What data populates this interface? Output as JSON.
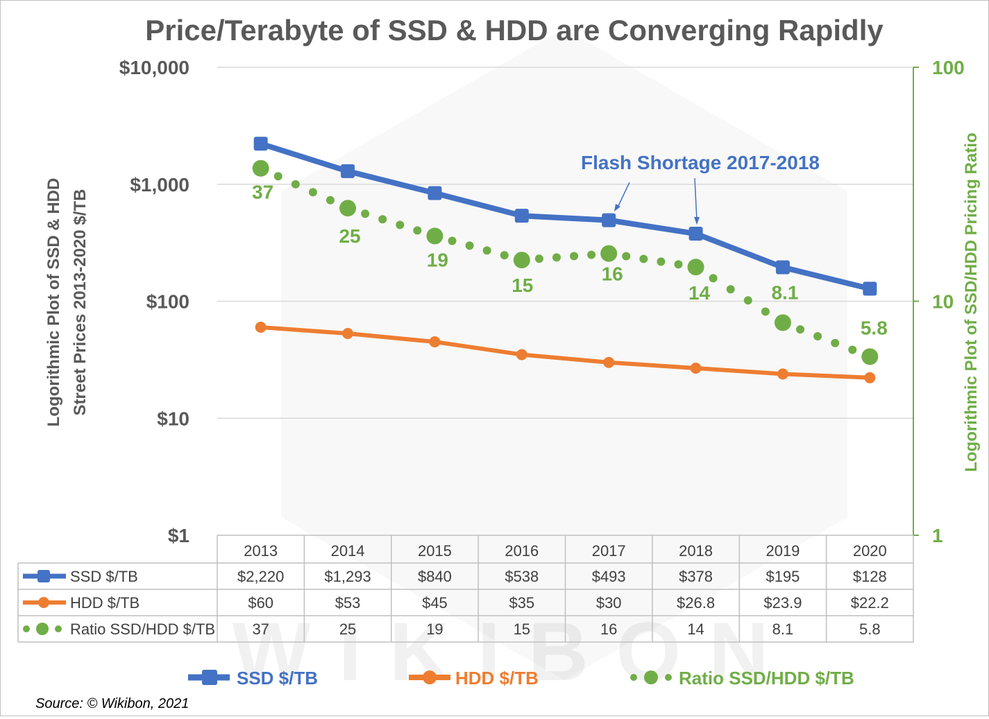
{
  "chart_data": {
    "type": "line",
    "title": "Price/Terabyte of SSD & HDD are Converging Rapidly",
    "categories": [
      "2013",
      "2014",
      "2015",
      "2016",
      "2017",
      "2018",
      "2019",
      "2020"
    ],
    "series": [
      {
        "name": "SSD $/TB",
        "axis": "left",
        "color": "#4472C4",
        "values": [
          2220,
          1293,
          840,
          538,
          493,
          378,
          195,
          128
        ],
        "table_values": [
          "$2,220",
          "$1,293",
          "$840",
          "$538",
          "$493",
          "$378",
          "$195",
          "$128"
        ]
      },
      {
        "name": "HDD $/TB",
        "axis": "left",
        "color": "#ED7D31",
        "values": [
          60,
          53,
          45,
          35,
          30,
          26.8,
          23.9,
          22.2
        ],
        "table_values": [
          "$60",
          "$53",
          "$45",
          "$35",
          "$30",
          "$26.8",
          "$23.9",
          "$22.2"
        ]
      },
      {
        "name": "Ratio SSD/HDD $/TB",
        "axis": "right",
        "color": "#70AD47",
        "values": [
          37,
          25,
          19,
          15,
          16,
          14,
          8.1,
          5.8
        ],
        "table_values": [
          "37",
          "25",
          "19",
          "15",
          "16",
          "14",
          "8.1",
          "5.8"
        ],
        "data_labels": [
          "37",
          "25",
          "19",
          "15",
          "16",
          "14",
          "8.1",
          "5.8"
        ]
      }
    ],
    "y_left": {
      "label": "Logorithmic Plot of SSD & HDD Street Prices 2013-2020 $/TB",
      "label_line1": "Logorithmic Plot of SSD & HDD",
      "label_line2": "Street Prices 2013-2020 $/TB",
      "scale": "log",
      "range": [
        1,
        10000
      ],
      "ticks": [
        {
          "value": 10000,
          "label": "$10,000"
        },
        {
          "value": 1000,
          "label": "$1,000"
        },
        {
          "value": 100,
          "label": "$100"
        },
        {
          "value": 10,
          "label": "$10"
        },
        {
          "value": 1,
          "label": "$1"
        }
      ]
    },
    "y_right": {
      "label": "Logorithmic Plot of SSD/HDD Pricing Ratio",
      "scale": "log",
      "range": [
        1,
        100
      ],
      "ticks": [
        {
          "value": 100,
          "label": "100"
        },
        {
          "value": 10,
          "label": "10"
        },
        {
          "value": 1,
          "label": "1"
        }
      ]
    },
    "annotation": {
      "text": "Flash Shortage 2017-2018",
      "points_to": [
        "2017",
        "2018"
      ]
    },
    "gridlines": true,
    "legend_position": "bottom",
    "data_table": true
  },
  "source": "Source: © Wikibon, 2021",
  "watermark": "WIKIBON"
}
